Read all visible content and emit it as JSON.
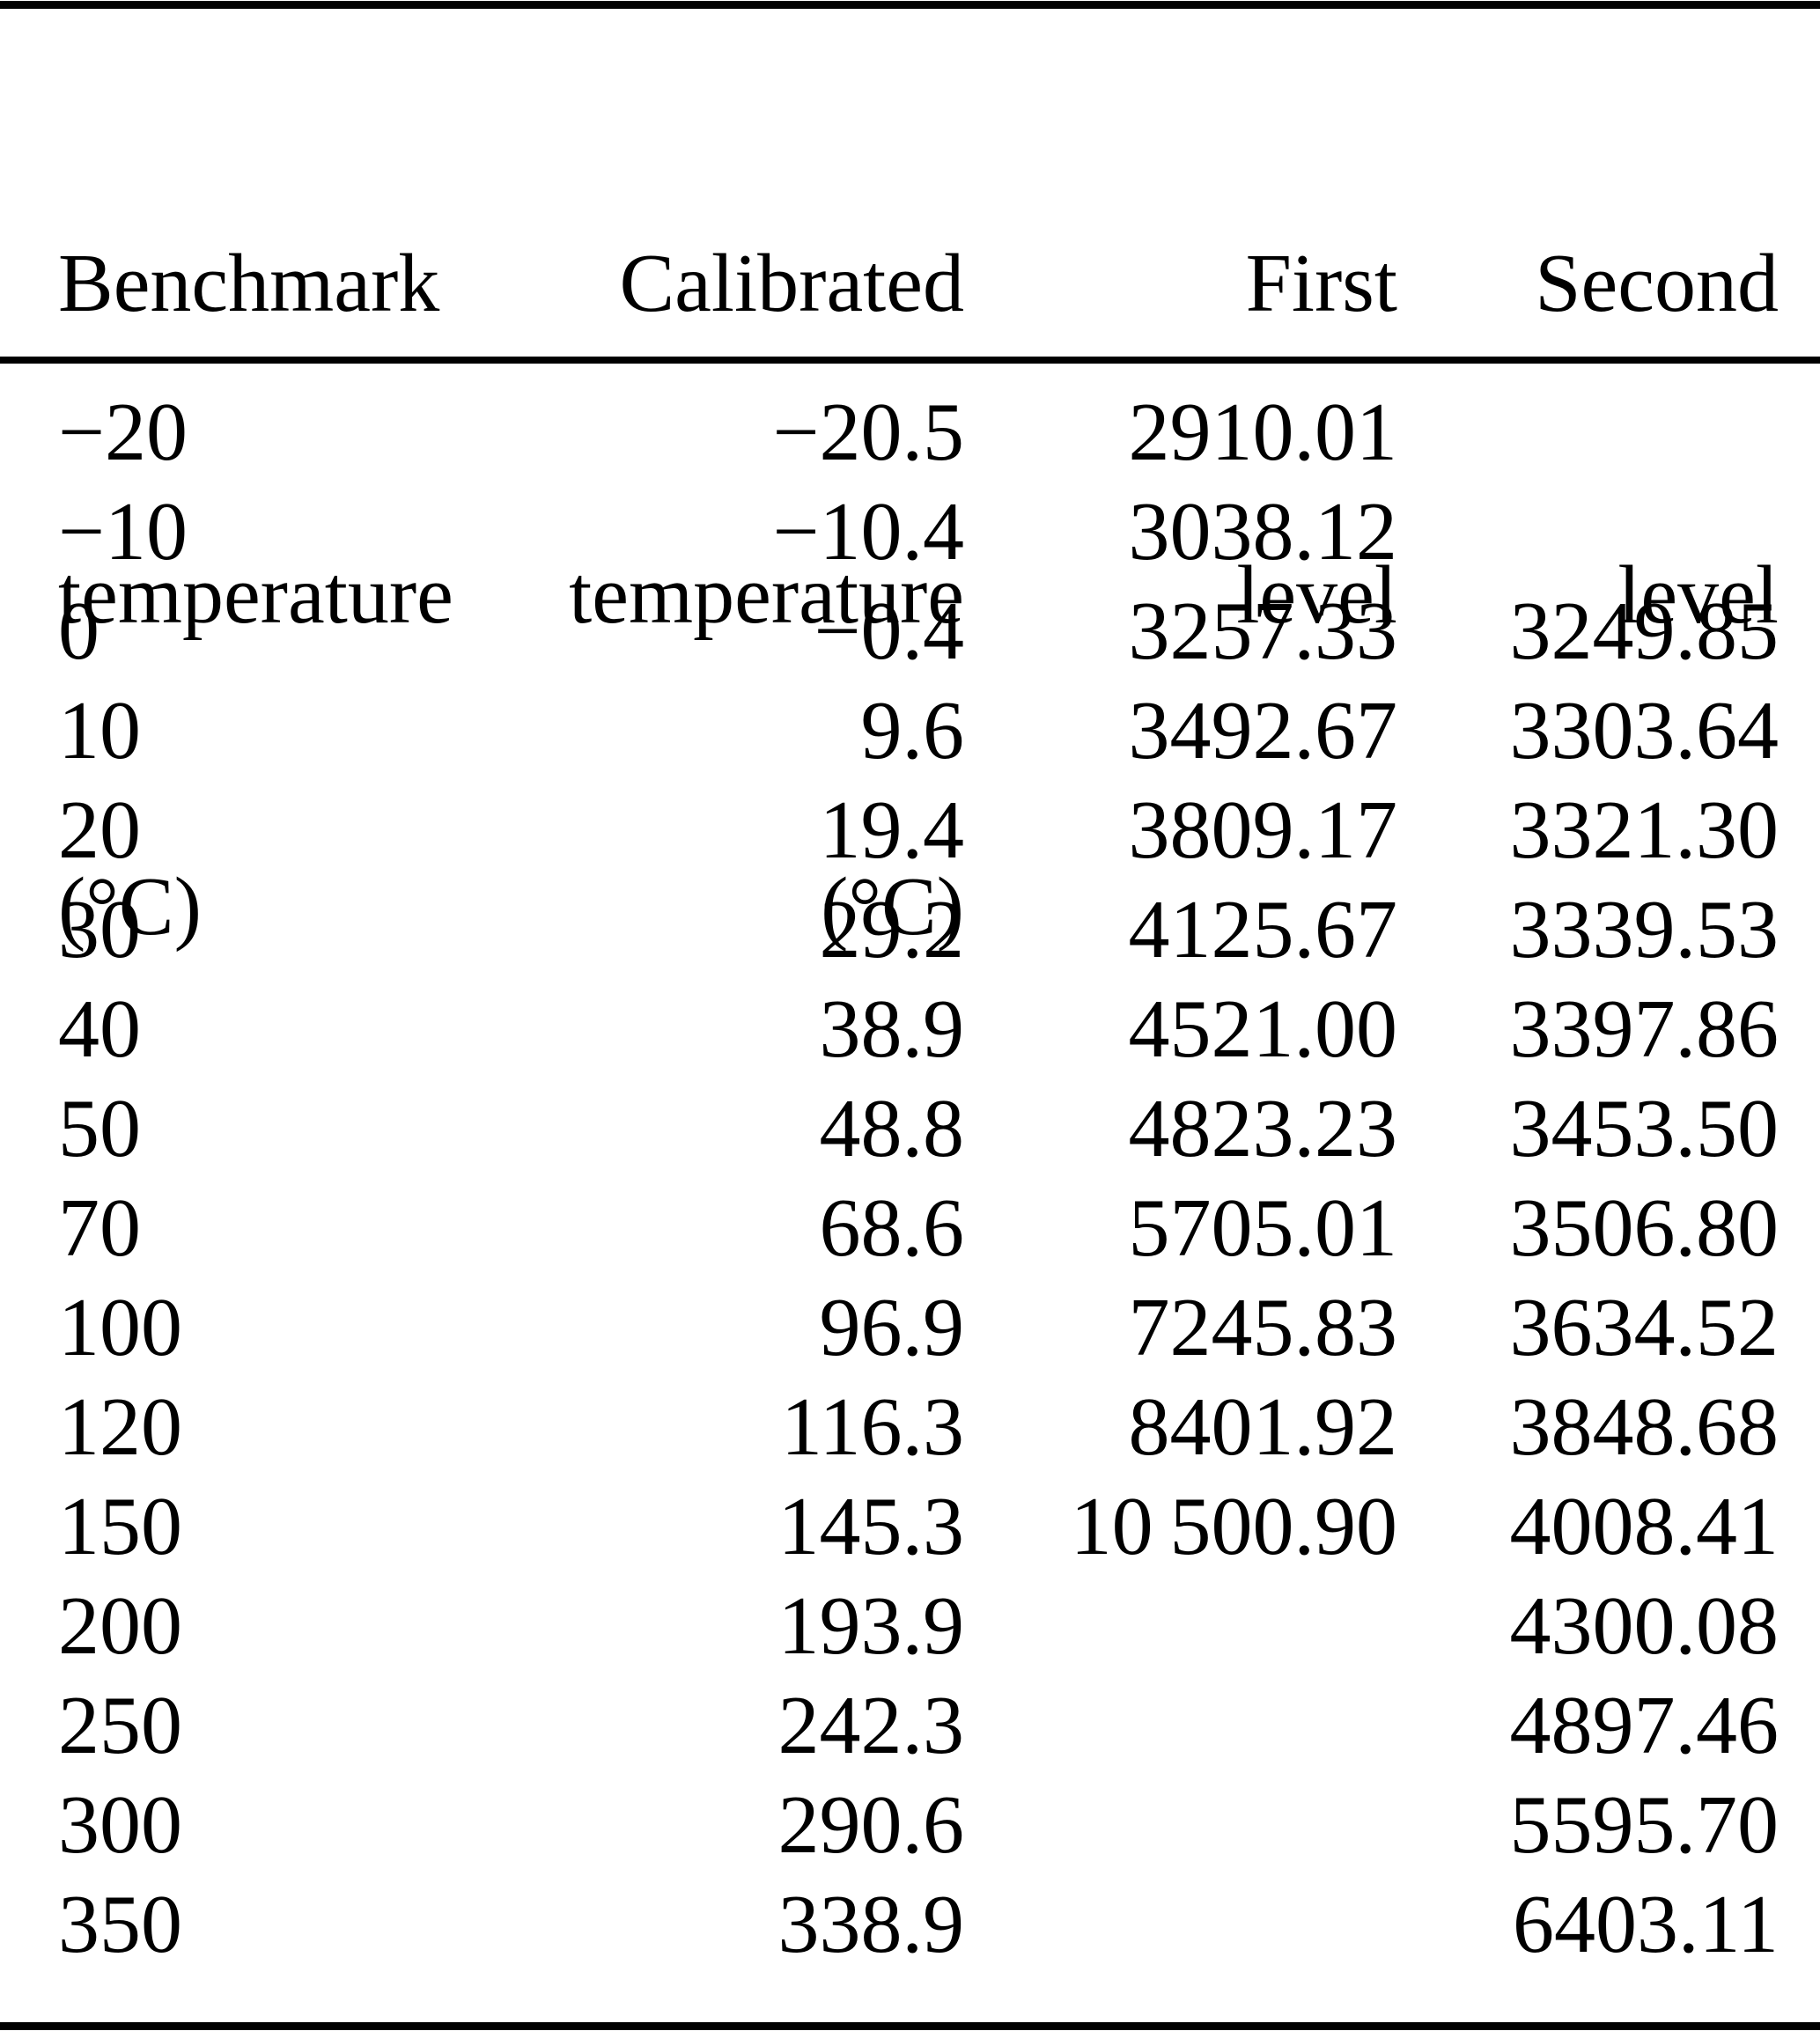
{
  "table": {
    "columns": [
      {
        "key": "benchmark-temperature",
        "align": "left",
        "lines": [
          "Benchmark",
          "temperature",
          "(°C)"
        ]
      },
      {
        "key": "calibrated-temperature",
        "align": "right",
        "lines": [
          "Calibrated",
          "temperature",
          "(°C)"
        ]
      },
      {
        "key": "first-level",
        "align": "right",
        "lines": [
          "First",
          "level",
          ""
        ]
      },
      {
        "key": "second-level",
        "align": "right",
        "lines": [
          "Second",
          "level",
          ""
        ]
      }
    ],
    "rows": [
      [
        "−20",
        "−20.5",
        "2910.01",
        ""
      ],
      [
        "−10",
        "−10.4",
        "3038.12",
        ""
      ],
      [
        "0",
        "−0.4",
        "3257.33",
        "3249.85"
      ],
      [
        "10",
        "9.6",
        "3492.67",
        "3303.64"
      ],
      [
        "20",
        "19.4",
        "3809.17",
        "3321.30"
      ],
      [
        "30",
        "29.2",
        "4125.67",
        "3339.53"
      ],
      [
        "40",
        "38.9",
        "4521.00",
        "3397.86"
      ],
      [
        "50",
        "48.8",
        "4823.23",
        "3453.50"
      ],
      [
        "70",
        "68.6",
        "5705.01",
        "3506.80"
      ],
      [
        "100",
        "96.9",
        "7245.83",
        "3634.52"
      ],
      [
        "120",
        "116.3",
        "8401.92",
        "3848.68"
      ],
      [
        "150",
        "145.3",
        "10 500.90",
        "4008.41"
      ],
      [
        "200",
        "193.9",
        "",
        "4300.08"
      ],
      [
        "250",
        "242.3",
        "",
        "4897.46"
      ],
      [
        "300",
        "290.6",
        "",
        "5595.70"
      ],
      [
        "350",
        "338.9",
        "",
        "6403.11"
      ]
    ]
  },
  "chart_data": {
    "type": "table",
    "columns": [
      "Benchmark temperature (°C)",
      "Calibrated temperature (°C)",
      "First level",
      "Second level"
    ],
    "rows": [
      [
        -20,
        -20.5,
        2910.01,
        null
      ],
      [
        -10,
        -10.4,
        3038.12,
        null
      ],
      [
        0,
        -0.4,
        3257.33,
        3249.85
      ],
      [
        10,
        9.6,
        3492.67,
        3303.64
      ],
      [
        20,
        19.4,
        3809.17,
        3321.3
      ],
      [
        30,
        29.2,
        4125.67,
        3339.53
      ],
      [
        40,
        38.9,
        4521.0,
        3397.86
      ],
      [
        50,
        48.8,
        4823.23,
        3453.5
      ],
      [
        70,
        68.6,
        5705.01,
        3506.8
      ],
      [
        100,
        96.9,
        7245.83,
        3634.52
      ],
      [
        120,
        116.3,
        8401.92,
        3848.68
      ],
      [
        150,
        145.3,
        10500.9,
        4008.41
      ],
      [
        200,
        193.9,
        null,
        4300.08
      ],
      [
        250,
        242.3,
        null,
        4897.46
      ],
      [
        300,
        290.6,
        null,
        5595.7
      ],
      [
        350,
        338.9,
        null,
        6403.11
      ]
    ]
  }
}
